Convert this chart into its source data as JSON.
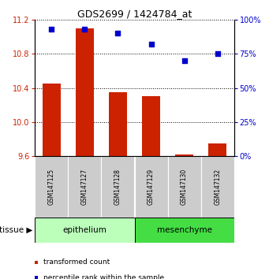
{
  "title": "GDS2699 / 1424784_at",
  "samples": [
    "GSM147125",
    "GSM147127",
    "GSM147128",
    "GSM147129",
    "GSM147130",
    "GSM147132"
  ],
  "bar_values": [
    10.45,
    11.1,
    10.35,
    10.3,
    9.62,
    9.75
  ],
  "percentile_values": [
    93,
    93,
    90,
    82,
    70,
    75
  ],
  "ylim_left": [
    9.6,
    11.2
  ],
  "ylim_right": [
    0,
    100
  ],
  "yticks_left": [
    9.6,
    10.0,
    10.4,
    10.8,
    11.2
  ],
  "yticks_right": [
    0,
    25,
    50,
    75,
    100
  ],
  "bar_color": "#cc2200",
  "dot_color": "#0000cc",
  "bar_width": 0.55,
  "epithelium_color": "#bbffbb",
  "mesenchyme_color": "#44dd44",
  "epithelium_indices": [
    0,
    1,
    2
  ],
  "mesenchyme_indices": [
    3,
    4,
    5
  ],
  "tissue_label": "tissue",
  "legend_entries": [
    "transformed count",
    "percentile rank within the sample"
  ],
  "legend_colors": [
    "#cc2200",
    "#0000cc"
  ],
  "bar_bottom": 9.6,
  "dot_marker": "s",
  "dot_size": 25,
  "sample_box_color": "#cccccc",
  "title_fontsize": 9,
  "axis_fontsize": 7.5,
  "tick_fontsize": 7,
  "legend_fontsize": 6.5
}
